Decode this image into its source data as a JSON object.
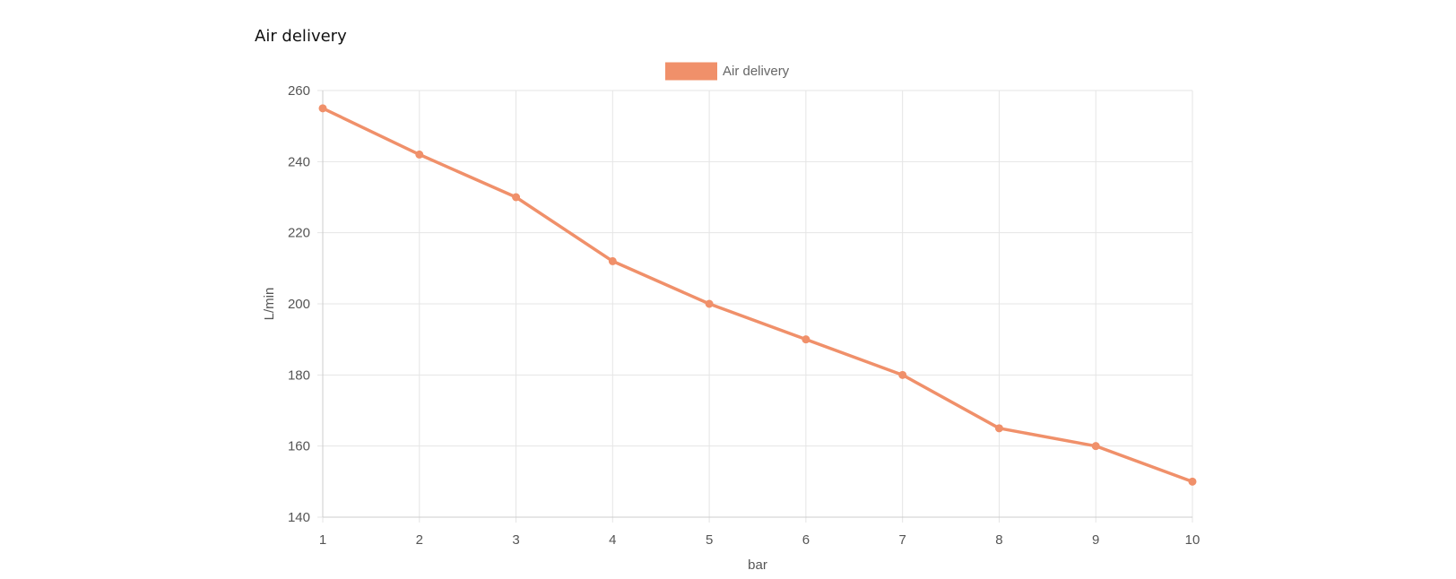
{
  "page": {
    "title": "Air delivery"
  },
  "chart_data": {
    "type": "line",
    "x": [
      1,
      2,
      3,
      4,
      5,
      6,
      7,
      8,
      9,
      10
    ],
    "series": [
      {
        "name": "Air delivery",
        "values": [
          255,
          242,
          230,
          212,
          200,
          190,
          180,
          165,
          160,
          150
        ],
        "color": "#f0906a"
      }
    ],
    "xlabel": "bar",
    "ylabel": "L/min",
    "xlim": [
      1,
      10
    ],
    "ylim": [
      140,
      260
    ],
    "yticks": [
      140,
      160,
      180,
      200,
      220,
      240,
      260
    ],
    "xticks": [
      1,
      2,
      3,
      4,
      5,
      6,
      7,
      8,
      9,
      10
    ],
    "grid": true,
    "legend_position": "top-center",
    "colors": {
      "grid": "#e5e5e5",
      "axis": "#cccccc",
      "tick_text": "#555555"
    }
  }
}
